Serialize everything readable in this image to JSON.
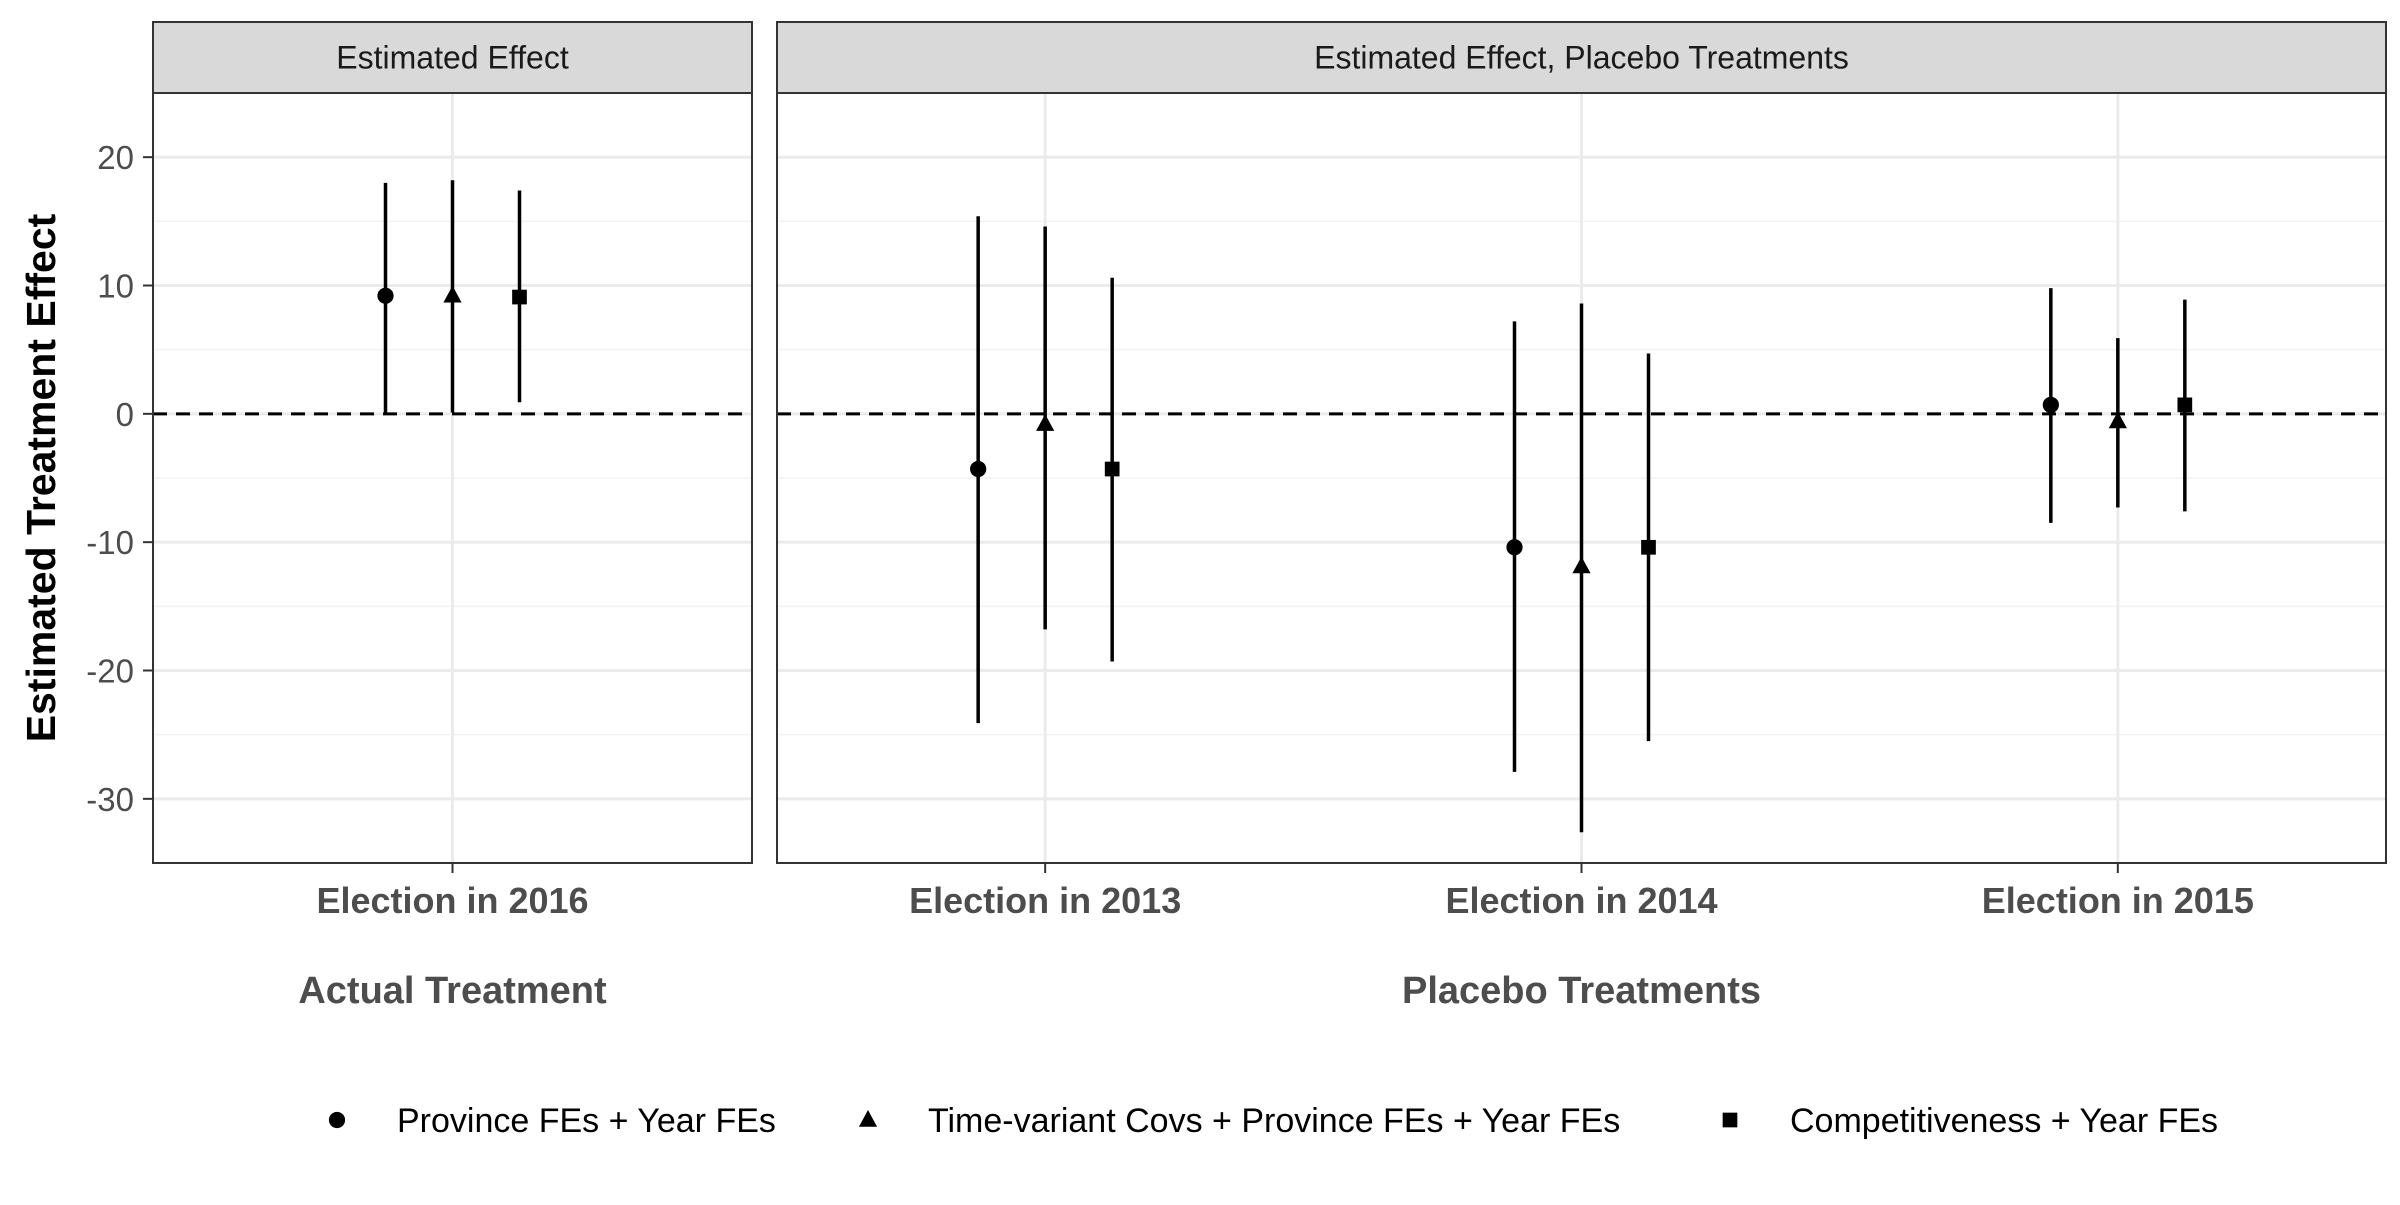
{
  "chart_data": {
    "type": "scatter",
    "y_label": "Estimated Treatment Effect",
    "ylim": [
      -35,
      25
    ],
    "y_ticks": [
      20,
      10,
      0,
      -10,
      -20,
      -30
    ],
    "reference_line": {
      "y": 0,
      "style": "dashed"
    },
    "grid": true,
    "legend_position": "bottom",
    "series": [
      {
        "name": "Province FEs + Year FEs",
        "shape": "circle"
      },
      {
        "name": "Time-variant Covs + Province FEs + Year FEs",
        "shape": "triangle"
      },
      {
        "name": "Competitiveness + Year FEs",
        "shape": "square"
      }
    ],
    "panels": [
      {
        "strip_label": "Estimated Effect",
        "x_axis_label": "Actual Treatment",
        "groups": [
          {
            "label": "Election in 2016",
            "estimates": [
              {
                "y": 9.2,
                "lower": 0.1,
                "upper": 18.0
              },
              {
                "y": 9.2,
                "lower": 0.1,
                "upper": 18.2
              },
              {
                "y": 9.1,
                "lower": 0.9,
                "upper": 17.4
              }
            ]
          }
        ]
      },
      {
        "strip_label": "Estimated Effect, Placebo Treatments",
        "x_axis_label": "Placebo Treatments",
        "groups": [
          {
            "label": "Election in 2013",
            "estimates": [
              {
                "y": -4.3,
                "lower": -24.1,
                "upper": 15.4
              },
              {
                "y": -0.8,
                "lower": -16.8,
                "upper": 14.6
              },
              {
                "y": -4.3,
                "lower": -19.3,
                "upper": 10.6
              }
            ]
          },
          {
            "label": "Election in 2014",
            "estimates": [
              {
                "y": -10.4,
                "lower": -27.9,
                "upper": 7.2
              },
              {
                "y": -11.9,
                "lower": -32.6,
                "upper": 8.6
              },
              {
                "y": -10.4,
                "lower": -25.5,
                "upper": 4.7
              }
            ]
          },
          {
            "label": "Election in 2015",
            "estimates": [
              {
                "y": 0.7,
                "lower": -8.5,
                "upper": 9.8
              },
              {
                "y": -0.6,
                "lower": -7.3,
                "upper": 5.9
              },
              {
                "y": 0.7,
                "lower": -7.6,
                "upper": 8.9
              }
            ]
          }
        ]
      }
    ]
  }
}
